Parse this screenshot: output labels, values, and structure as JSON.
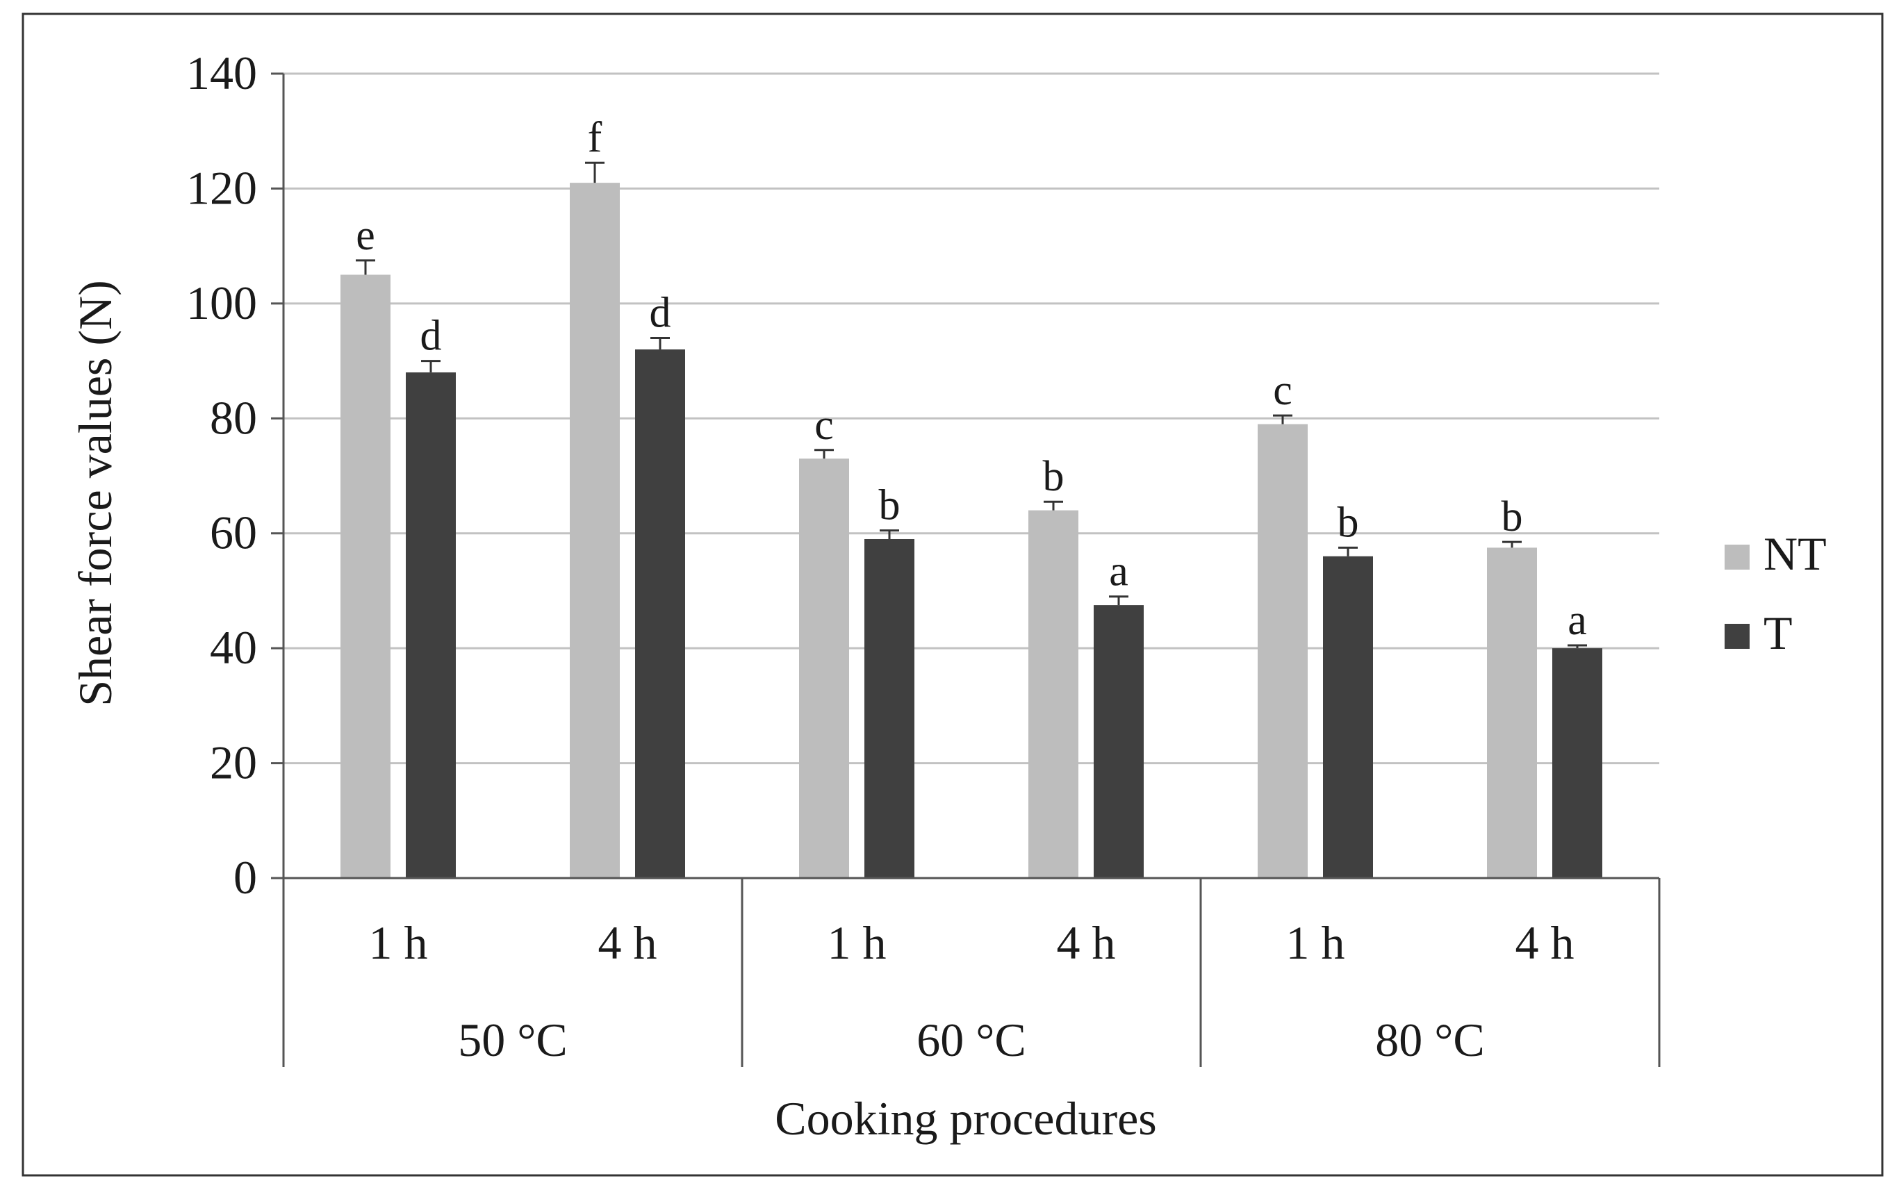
{
  "chart_data": {
    "type": "bar",
    "title": "",
    "xlabel": "Cooking procedures",
    "ylabel": "Shear force values (N)",
    "ylim": [
      0,
      140
    ],
    "yticks": [
      0,
      20,
      40,
      60,
      80,
      100,
      120,
      140
    ],
    "grid": true,
    "legend_position": "right",
    "groups": [
      "50 °C",
      "60 °C",
      "80 °C"
    ],
    "categories": [
      "1 h",
      "4 h",
      "1 h",
      "4 h",
      "1 h",
      "4 h"
    ],
    "category_group_index": [
      0,
      0,
      1,
      1,
      2,
      2
    ],
    "series": [
      {
        "name": "NT",
        "color": "#bdbdbd",
        "values": [
          105,
          121,
          73,
          64,
          79,
          57.5
        ],
        "errors": [
          2.5,
          3.5,
          1.5,
          1.5,
          1.5,
          1.0
        ],
        "significance": [
          "e",
          "f",
          "c",
          "b",
          "c",
          "b"
        ]
      },
      {
        "name": "T",
        "color": "#404040",
        "values": [
          88,
          92,
          59,
          47.5,
          56,
          40
        ],
        "errors": [
          2.0,
          2.0,
          1.5,
          1.5,
          1.5,
          0.5
        ],
        "significance": [
          "d",
          "d",
          "b",
          "a",
          "b",
          "a"
        ]
      }
    ]
  }
}
